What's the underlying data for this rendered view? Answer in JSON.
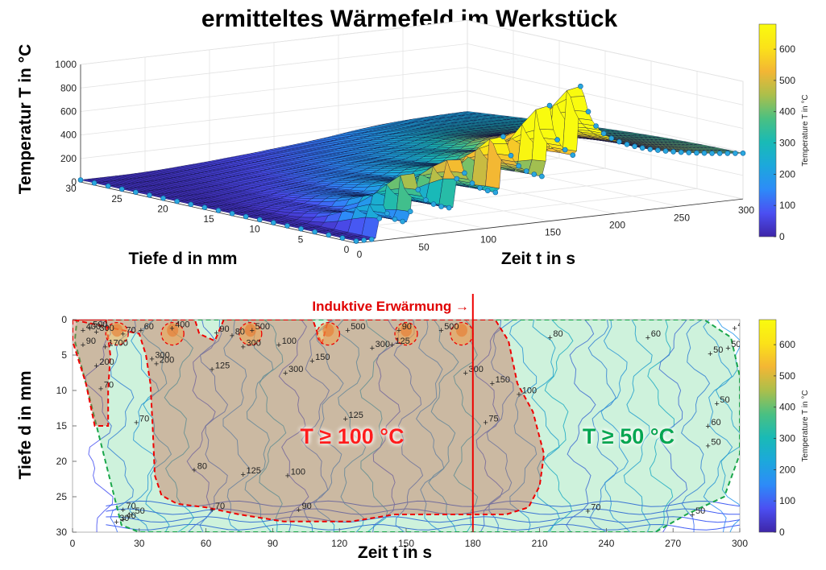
{
  "title": "ermitteltes Wärmefeld im Werkstück",
  "colormap": [
    "#3e26a8",
    "#4b4ff2",
    "#2d8bf8",
    "#1ca8dc",
    "#19bab6",
    "#4ac082",
    "#abbf4b",
    "#f3b634",
    "#fbe219",
    "#f9fb0e"
  ],
  "chart_data": [
    {
      "type": "surface",
      "ylabel": "Tiefe d in mm",
      "xlabel": "Zeit  t in s",
      "zlabel": "Temperatur  T in °C",
      "x_range": [
        0,
        300
      ],
      "y_range": [
        0,
        30
      ],
      "z_range": [
        0,
        1000
      ],
      "x_ticks": [
        0,
        50,
        100,
        150,
        200,
        250,
        300
      ],
      "y_ticks": [
        30,
        25,
        20,
        15,
        10,
        5,
        0
      ],
      "z_ticks": [
        0,
        200,
        400,
        600,
        800,
        1000
      ],
      "heating_pulses_s": [
        20,
        45,
        80,
        115,
        150,
        175
      ],
      "peak_temperatures_C": [
        300,
        380,
        450,
        520,
        560,
        660
      ],
      "colorbar": {
        "label": "Temperature T in °C",
        "ticks": [
          0,
          100,
          200,
          300,
          400,
          500,
          600
        ],
        "range": [
          0,
          680
        ]
      }
    },
    {
      "type": "contour",
      "xlabel": "Zeit  t in s",
      "ylabel": "Tiefe d in mm",
      "x_range": [
        0,
        300
      ],
      "y_range": [
        0,
        30
      ],
      "x_ticks": [
        0,
        30,
        60,
        90,
        120,
        150,
        180,
        210,
        240,
        270,
        300
      ],
      "y_ticks": [
        0,
        5,
        10,
        15,
        20,
        25,
        30
      ],
      "annotation": "Induktive Erwärmung →",
      "heating_end_s": 180,
      "regions": [
        {
          "label": "T ≥ 100 °C",
          "color": "#ff0000"
        },
        {
          "label": "T ≥ 50 °C",
          "color": "#00a651"
        }
      ],
      "contour_labels": [
        {
          "text": "500",
          "x": 8,
          "y": 1.2
        },
        {
          "text": "400",
          "x": 5,
          "y": 1.5
        },
        {
          "text": "300",
          "x": 11,
          "y": 1.7
        },
        {
          "text": "90",
          "x": 5,
          "y": 3.5
        },
        {
          "text": "1700",
          "x": 15,
          "y": 3.8
        },
        {
          "text": "200",
          "x": 11,
          "y": 6.5
        },
        {
          "text": "70",
          "x": 23,
          "y": 2.0
        },
        {
          "text": "60",
          "x": 31,
          "y": 1.5
        },
        {
          "text": "300",
          "x": 36,
          "y": 5.5
        },
        {
          "text": "200",
          "x": 38,
          "y": 6.2
        },
        {
          "text": "400",
          "x": 45,
          "y": 1.2
        },
        {
          "text": "90",
          "x": 65,
          "y": 1.8
        },
        {
          "text": "125",
          "x": 63,
          "y": 7.0
        },
        {
          "text": "80",
          "x": 72,
          "y": 2.2
        },
        {
          "text": "500",
          "x": 81,
          "y": 1.5
        },
        {
          "text": "300",
          "x": 77,
          "y": 3.8
        },
        {
          "text": "100",
          "x": 93,
          "y": 3.5
        },
        {
          "text": "150",
          "x": 108,
          "y": 5.8
        },
        {
          "text": "300",
          "x": 96,
          "y": 7.5
        },
        {
          "text": "125",
          "x": 123,
          "y": 14.0
        },
        {
          "text": "500",
          "x": 124,
          "y": 1.5
        },
        {
          "text": "300",
          "x": 135,
          "y": 4.0
        },
        {
          "text": "125",
          "x": 144,
          "y": 3.5
        },
        {
          "text": "90",
          "x": 147,
          "y": 1.5
        },
        {
          "text": "500",
          "x": 166,
          "y": 1.5
        },
        {
          "text": "300",
          "x": 177,
          "y": 7.5
        },
        {
          "text": "150",
          "x": 189,
          "y": 9.0
        },
        {
          "text": "100",
          "x": 201,
          "y": 10.5
        },
        {
          "text": "75",
          "x": 186,
          "y": 14.5
        },
        {
          "text": "80",
          "x": 215,
          "y": 2.5
        },
        {
          "text": "60",
          "x": 259,
          "y": 2.5
        },
        {
          "text": "40",
          "x": 298,
          "y": 1.2
        },
        {
          "text": "50",
          "x": 295,
          "y": 4.0
        },
        {
          "text": "50",
          "x": 287,
          "y": 4.8
        },
        {
          "text": "50",
          "x": 290,
          "y": 11.8
        },
        {
          "text": "60",
          "x": 286,
          "y": 15.0
        },
        {
          "text": "50",
          "x": 286,
          "y": 17.8
        },
        {
          "text": "50",
          "x": 301,
          "y": 15.0
        },
        {
          "text": "50",
          "x": 301,
          "y": 18.9
        },
        {
          "text": "70",
          "x": 13,
          "y": 9.7
        },
        {
          "text": "70",
          "x": 29,
          "y": 14.5
        },
        {
          "text": "80",
          "x": 55,
          "y": 21.2
        },
        {
          "text": "125",
          "x": 77,
          "y": 21.8
        },
        {
          "text": "100",
          "x": 97,
          "y": 22.0
        },
        {
          "text": "70",
          "x": 23,
          "y": 26.8
        },
        {
          "text": "50",
          "x": 27,
          "y": 27.5
        },
        {
          "text": "40",
          "x": 23,
          "y": 28.2
        },
        {
          "text": "90",
          "x": 102,
          "y": 26.8
        },
        {
          "text": "70",
          "x": 63,
          "y": 26.8
        },
        {
          "text": "70",
          "x": 232,
          "y": 27.0
        },
        {
          "text": "50",
          "x": 279,
          "y": 27.5
        },
        {
          "text": "30",
          "x": 20,
          "y": 28.5
        }
      ],
      "colorbar": {
        "label": "Temperature T in °C",
        "ticks": [
          0,
          100,
          200,
          300,
          400,
          500,
          600
        ],
        "range": [
          0,
          680
        ]
      }
    }
  ]
}
